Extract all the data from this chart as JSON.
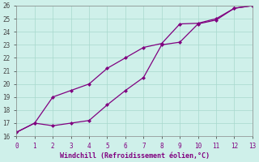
{
  "line1_x": [
    0,
    1,
    2,
    3,
    4,
    5,
    6,
    7,
    8,
    9,
    10,
    11,
    12,
    13
  ],
  "line1_y": [
    16.3,
    17.0,
    19.0,
    19.5,
    20.0,
    21.2,
    22.0,
    22.8,
    23.1,
    24.6,
    24.65,
    25.0,
    25.8,
    26.0
  ],
  "line2_x": [
    0,
    1,
    2,
    3,
    4,
    5,
    6,
    7,
    8,
    9,
    10,
    11,
    12,
    13
  ],
  "line2_y": [
    16.3,
    17.0,
    16.8,
    17.0,
    17.2,
    18.4,
    19.5,
    20.5,
    23.0,
    23.2,
    24.6,
    24.9,
    25.8,
    26.0
  ],
  "xlabel": "Windchill (Refroidissement éolien,°C)",
  "line_color": "#800080",
  "bg_color": "#cff0ea",
  "grid_color": "#a8d8cc",
  "xlim": [
    0,
    13
  ],
  "ylim": [
    16,
    26
  ],
  "xticks": [
    0,
    1,
    2,
    3,
    4,
    5,
    6,
    7,
    8,
    9,
    10,
    11,
    12,
    13
  ],
  "yticks": [
    16,
    17,
    18,
    19,
    20,
    21,
    22,
    23,
    24,
    25,
    26
  ]
}
